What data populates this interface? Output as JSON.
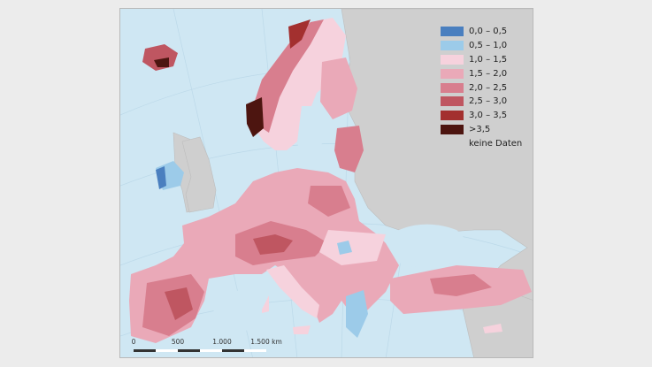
{
  "map": {
    "legend": [
      {
        "label": "0,0 – 0,5",
        "color": "#4a7fbf"
      },
      {
        "label": "0,5 – 1,0",
        "color": "#9ccbe9"
      },
      {
        "label": "1,0 – 1,5",
        "color": "#f6d2dd"
      },
      {
        "label": "1,5 – 2,0",
        "color": "#eaa9b8"
      },
      {
        "label": "2,0 – 2,5",
        "color": "#d87e8e"
      },
      {
        "label": "2,5 – 3,0",
        "color": "#bf5661"
      },
      {
        "label": "3,0 – 3,5",
        "color": "#a3302f"
      },
      {
        "label": ">3,5",
        "color": "#4d1510"
      },
      {
        "label": "keine Daten",
        "color": "#cfcfcf"
      }
    ],
    "scale": {
      "ticks": [
        "0",
        "500",
        "1.000",
        "1.500 km"
      ]
    },
    "colors": {
      "sea": "#cfe7f3",
      "nodata": "#cfcfcf"
    }
  }
}
